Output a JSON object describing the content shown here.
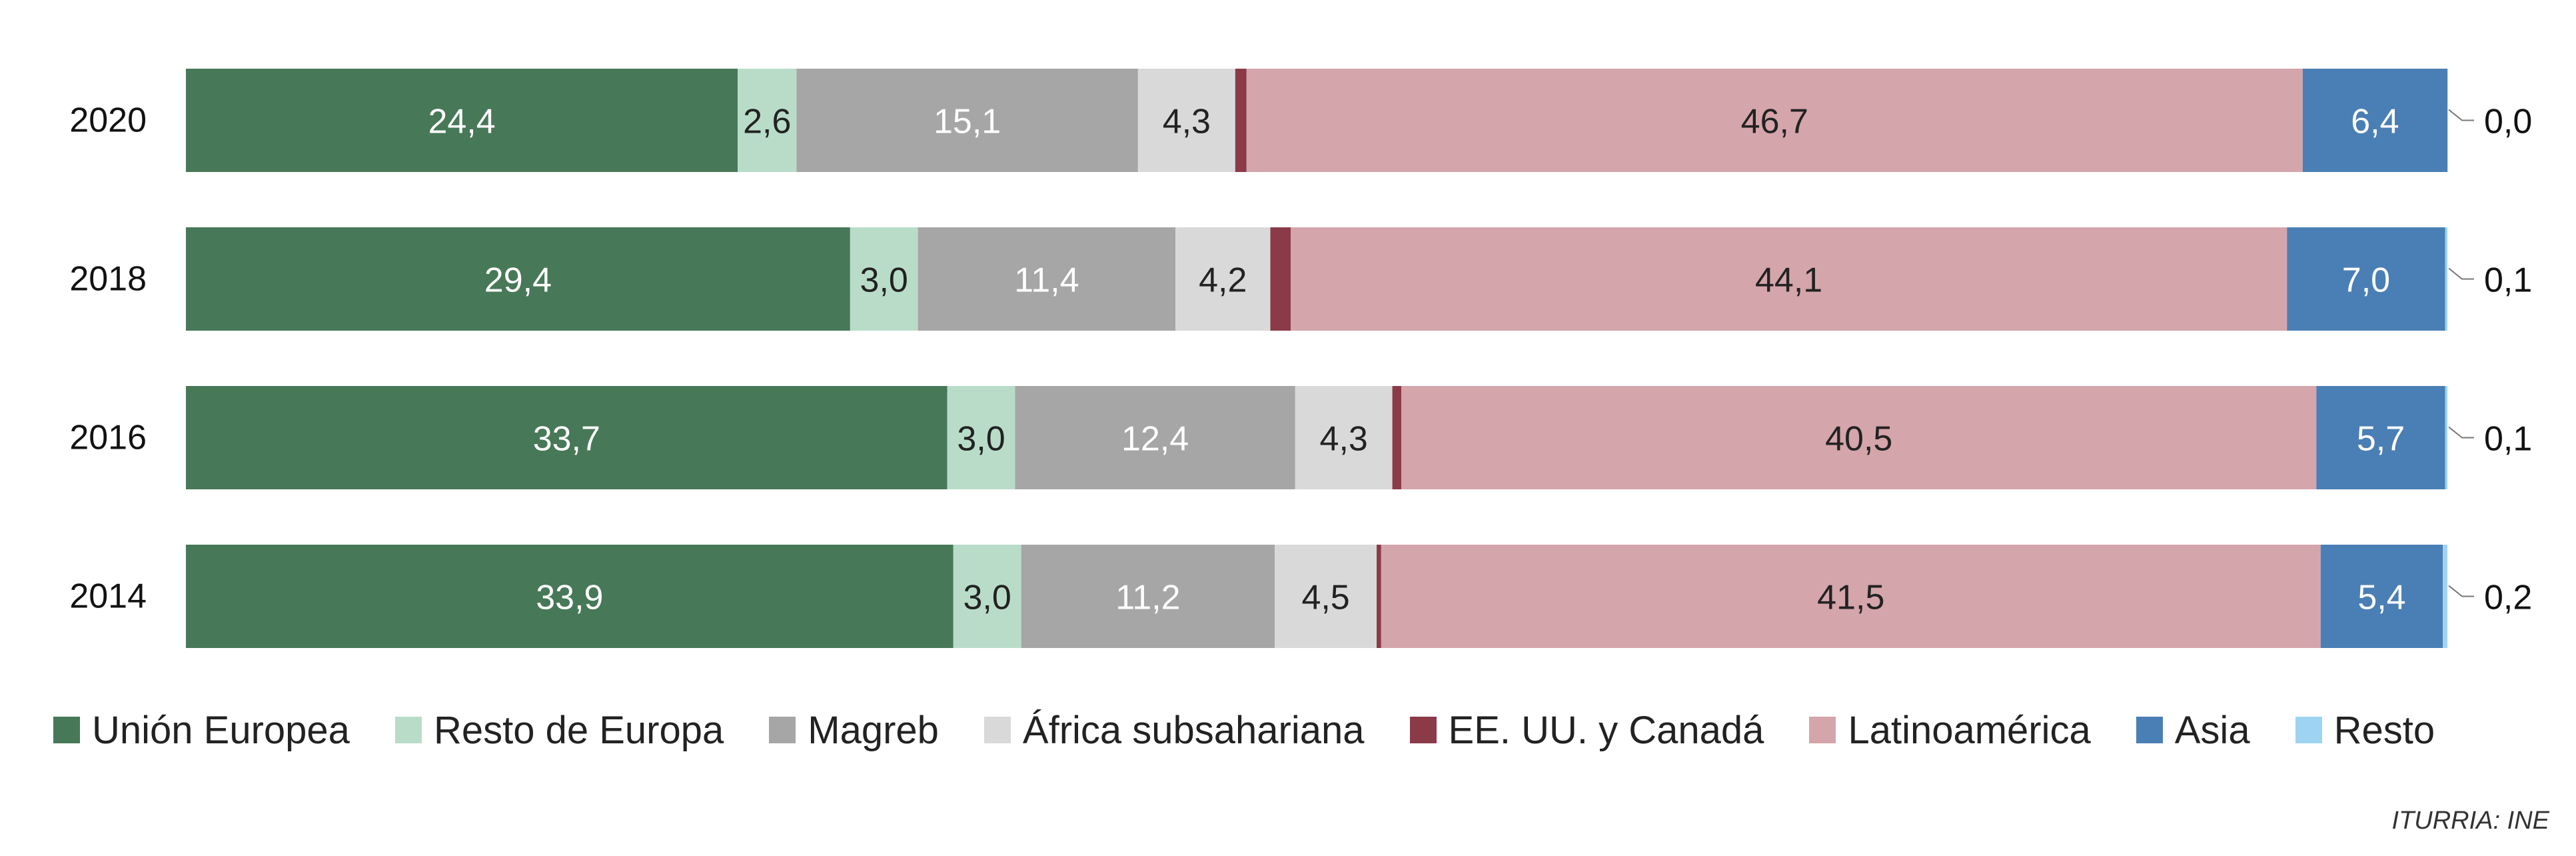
{
  "chart_data": {
    "type": "bar",
    "orientation": "horizontal",
    "stacked": true,
    "percent_stacked": true,
    "categories": [
      "2020",
      "2018",
      "2016",
      "2014"
    ],
    "series": [
      {
        "name": "Unión Europea",
        "color": "#477857",
        "label_color": "#ffffff",
        "values": [
          24.4,
          29.4,
          33.7,
          33.9
        ],
        "labels": [
          "24,4",
          "29,4",
          "33,7",
          "33,9"
        ]
      },
      {
        "name": "Resto de Europa",
        "color": "#b9dcc9",
        "label_color": "#222222",
        "values": [
          2.6,
          3.0,
          3.0,
          3.0
        ],
        "labels": [
          "2,6",
          "3,0",
          "3,0",
          "3,0"
        ]
      },
      {
        "name": "Magreb",
        "color": "#a6a6a6",
        "label_color": "#ffffff",
        "values": [
          15.1,
          11.4,
          12.4,
          11.2
        ],
        "labels": [
          "15,1",
          "11,4",
          "12,4",
          "11,2"
        ]
      },
      {
        "name": "África subsahariana",
        "color": "#d9d9d9",
        "label_color": "#222222",
        "values": [
          4.3,
          4.2,
          4.3,
          4.5
        ],
        "labels": [
          "4,3",
          "4,2",
          "4,3",
          "4,5"
        ]
      },
      {
        "name": "EE. UU. y Canadá",
        "color": "#8b3a48",
        "label_color": "#ffffff",
        "values": [
          0.5,
          0.9,
          0.4,
          0.2
        ],
        "labels": [
          "0,5",
          "0,9",
          "0,4",
          "0,2"
        ],
        "callout": "inside-box"
      },
      {
        "name": "Latinoamérica",
        "color": "#d4a5ab",
        "label_color": "#222222",
        "values": [
          46.7,
          44.1,
          40.5,
          41.5
        ],
        "labels": [
          "46,7",
          "44,1",
          "40,5",
          "41,5"
        ]
      },
      {
        "name": "Asia",
        "color": "#4a7fb5",
        "label_color": "#ffffff",
        "values": [
          6.4,
          7.0,
          5.7,
          5.4
        ],
        "labels": [
          "6,4",
          "7,0",
          "5,7",
          "5,4"
        ]
      },
      {
        "name": "Resto",
        "color": "#9fd3f2",
        "label_color": "#222222",
        "values": [
          0.0,
          0.1,
          0.1,
          0.2
        ],
        "labels": [
          "0,0",
          "0,1",
          "0,1",
          "0,2"
        ],
        "callout": "outside-right"
      }
    ],
    "title": "",
    "xlabel": "",
    "ylabel": "",
    "grid": false,
    "legend_position": "bottom"
  },
  "source": "ITURRIA: INE"
}
